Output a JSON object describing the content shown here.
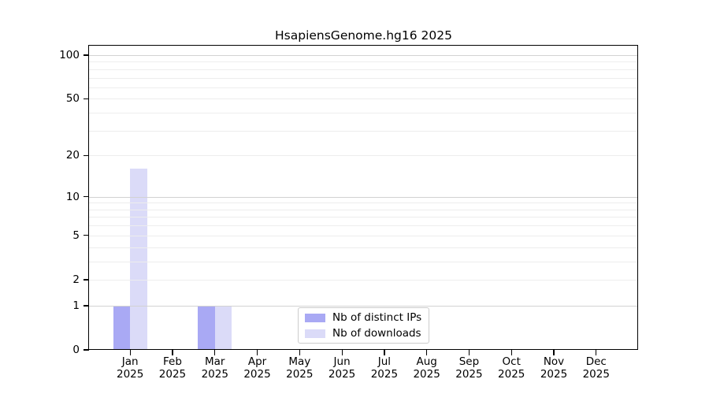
{
  "chart_data": {
    "type": "bar",
    "title": "HsapiensGenome.hg16 2025",
    "categories": [
      "Jan 2025",
      "Feb 2025",
      "Mar 2025",
      "Apr 2025",
      "May 2025",
      "Jun 2025",
      "Jul 2025",
      "Aug 2025",
      "Sep 2025",
      "Oct 2025",
      "Nov 2025",
      "Dec 2025"
    ],
    "x_ticks": [
      {
        "month": "Jan",
        "year": "2025"
      },
      {
        "month": "Feb",
        "year": "2025"
      },
      {
        "month": "Mar",
        "year": "2025"
      },
      {
        "month": "Apr",
        "year": "2025"
      },
      {
        "month": "May",
        "year": "2025"
      },
      {
        "month": "Jun",
        "year": "2025"
      },
      {
        "month": "Jul",
        "year": "2025"
      },
      {
        "month": "Aug",
        "year": "2025"
      },
      {
        "month": "Sep",
        "year": "2025"
      },
      {
        "month": "Oct",
        "year": "2025"
      },
      {
        "month": "Nov",
        "year": "2025"
      },
      {
        "month": "Dec",
        "year": "2025"
      }
    ],
    "series": [
      {
        "name": "Nb of distinct IPs",
        "color": "#a9a9f4",
        "values": [
          1,
          0,
          1,
          0,
          0,
          0,
          0,
          0,
          0,
          0,
          0,
          0
        ]
      },
      {
        "name": "Nb of downloads",
        "color": "#dbdbf8",
        "values": [
          16,
          0,
          1,
          0,
          0,
          0,
          0,
          0,
          0,
          0,
          0,
          0
        ]
      }
    ],
    "y_axis": {
      "scale": "log10(1+y)",
      "range": [
        0,
        116
      ],
      "tick_values": [
        100,
        50,
        20,
        10,
        5,
        2,
        1,
        0
      ],
      "tick_labels": [
        "100",
        "50",
        "20",
        "10",
        "5",
        "2",
        "1",
        "0"
      ],
      "minor_gridlines": [
        2,
        3,
        4,
        5,
        6,
        7,
        8,
        9,
        20,
        30,
        40,
        50,
        60,
        70,
        80,
        90
      ],
      "major_gridlines": [
        1,
        10,
        100
      ]
    },
    "xlabel": "",
    "ylabel": "",
    "grid": true,
    "legend": {
      "position": "inside bottom-center",
      "entries": [
        "Nb of distinct IPs",
        "Nb of downloads"
      ]
    },
    "colors": {
      "minor_grid": "#ededed",
      "major_grid": "#d2d2d2",
      "frame": "#000000",
      "background": "#ffffff"
    }
  }
}
